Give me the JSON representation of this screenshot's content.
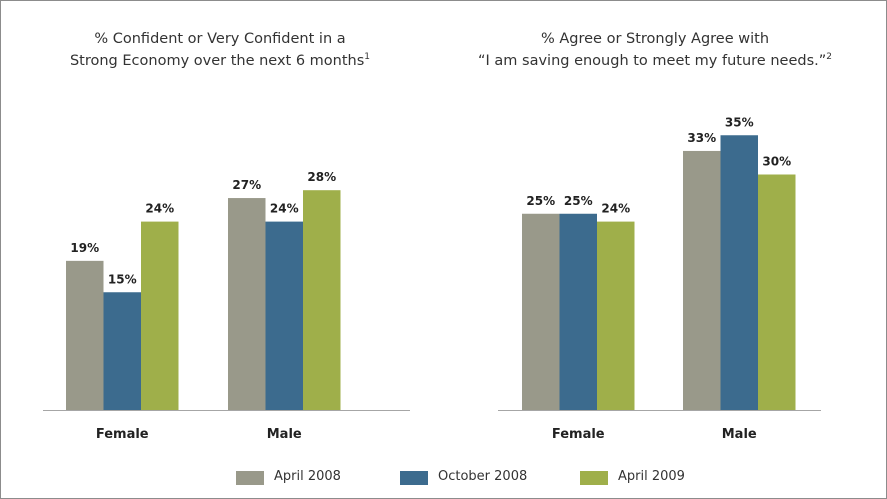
{
  "colors": {
    "april_2008": "#99998a",
    "october_2008": "#3c6b8e",
    "april_2009": "#9faf4a"
  },
  "legend": {
    "items": [
      {
        "label": "April 2008",
        "color": "#99998a"
      },
      {
        "label": "October 2008",
        "color": "#3c6b8e"
      },
      {
        "label": "April 2009",
        "color": "#9faf4a"
      }
    ]
  },
  "chart_data": [
    {
      "type": "bar",
      "title_line1": "% Confident or Very Confident in a",
      "title_line2": "Strong Economy over the next 6 months",
      "title_footnote": "1",
      "categories": [
        "Female",
        "Male"
      ],
      "series": [
        {
          "name": "April 2008",
          "values": [
            19,
            27
          ],
          "labels": [
            "19%",
            "27%"
          ]
        },
        {
          "name": "October 2008",
          "values": [
            15,
            24
          ],
          "labels": [
            "15%",
            "24%"
          ]
        },
        {
          "name": "April 2009",
          "values": [
            24,
            28
          ],
          "labels": [
            "24%",
            "28%"
          ]
        }
      ],
      "ylim": [
        0,
        40
      ],
      "grid": false,
      "legend_position": "bottom"
    },
    {
      "type": "bar",
      "title_line1": "% Agree or Strongly Agree with",
      "title_line2": "“I am saving enough to meet my future needs.”",
      "title_footnote": "2",
      "categories": [
        "Female",
        "Male"
      ],
      "series": [
        {
          "name": "April 2008",
          "values": [
            25,
            33
          ],
          "labels": [
            "25%",
            "33%"
          ]
        },
        {
          "name": "October 2008",
          "values": [
            25,
            35
          ],
          "labels": [
            "25%",
            "35%"
          ]
        },
        {
          "name": "April 2009",
          "values": [
            24,
            30
          ],
          "labels": [
            "24%",
            "30%"
          ]
        }
      ],
      "ylim": [
        0,
        40
      ],
      "grid": false,
      "legend_position": "bottom"
    }
  ]
}
